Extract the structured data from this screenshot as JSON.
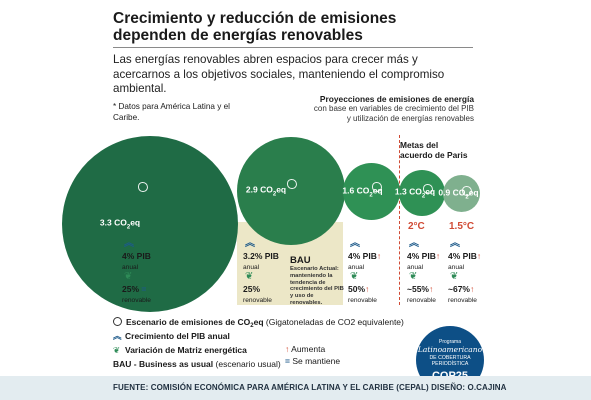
{
  "header": {
    "title": "Crecimiento y reducción de emisiones dependen de energías renovables",
    "intro": "Las energías renovables abren espacios para crecer más y acercarnos a los objetivos sociales, manteniendo el compromiso ambiental."
  },
  "note": "* Datos para América Latina y el Caribe.",
  "projections": {
    "title": "Proyecciones de emisiones de energía",
    "subtitle": "con base en variables de crecimiento del PIB y utilización de energías renovables"
  },
  "paris": {
    "title": "Metas del acuerdo de Paris"
  },
  "colors": {
    "dark_green": "#1f6b45",
    "mid_green": "#2f9155",
    "light_green": "#7fb08e",
    "red": "#d04a34",
    "blue": "#1d5a8a",
    "bau_fill": "#ece7c7"
  },
  "scenarios": [
    {
      "emission_value": "3.3",
      "emission_unit": "CO",
      "emission_sub": "2",
      "emission_tail": "eq",
      "gdp_value": "4%",
      "gdp_label": "PIB",
      "gdp_trend": "",
      "gdp_unit": "anual",
      "renewable_value": "25%",
      "renewable_trend": "=",
      "renewable_label": "renovable"
    },
    {
      "emission_value": "2.9",
      "emission_unit": "CO",
      "emission_sub": "2",
      "emission_tail": "eq",
      "gdp_value": "3.2%",
      "gdp_label": "PIB",
      "gdp_trend": "",
      "gdp_unit": "anual",
      "renewable_value": "25%",
      "renewable_trend": "",
      "renewable_label": "renovable",
      "bau_label": "BAU",
      "bau_desc": "Escenario Actual: manteniendo la tendencia de crecimiento del PIB y uso de renovables."
    },
    {
      "emission_value": "1.6",
      "emission_unit": "CO",
      "emission_sub": "2",
      "emission_tail": "eq",
      "gdp_value": "4%",
      "gdp_label": "PIB",
      "gdp_trend": "↑",
      "gdp_unit": "anual",
      "renewable_value": "50%",
      "renewable_trend": "↑",
      "renewable_label": "renovable"
    },
    {
      "emission_value": "1.3",
      "emission_unit": "CO",
      "emission_sub": "2",
      "emission_tail": "eq",
      "temp": "2°C",
      "gdp_value": "4%",
      "gdp_label": "PIB",
      "gdp_trend": "↑",
      "gdp_unit": "anual",
      "renewable_value": "~55%",
      "renewable_trend": "↑",
      "renewable_label": "renovable"
    },
    {
      "emission_value": "0.9",
      "emission_unit": "CO",
      "emission_sub": "2",
      "emission_tail": "eq",
      "temp": "1.5°C",
      "gdp_value": "4%",
      "gdp_label": "PIB",
      "gdp_trend": "↑",
      "gdp_unit": "anual",
      "renewable_value": "~67%",
      "renewable_trend": "↑",
      "renewable_label": "renovable"
    }
  ],
  "legend": {
    "emissions_bold": "Escenario de emisiones de CO",
    "emissions_sub": "2",
    "emissions_tail": "eq",
    "emissions_note": "(Gigatoneladas de CO2 equivalente)",
    "gdp": "Crecimiento del PIB  anual",
    "matrix": "Variación de Matriz energética",
    "bau_bold": "BAU - Business as usual",
    "bau_note": "(escenario usual)",
    "increase_symbol": "↑",
    "increase": "Aumenta",
    "same_symbol": "=",
    "same": "Se mantiene"
  },
  "badge": {
    "line1": "Programa",
    "line2": "Latinoamericano",
    "line3": "DE COBERTURA PERIODÍSTICA",
    "line4": "COP25"
  },
  "footer": {
    "prefix": "FUENTE:",
    "source": "COMISIÓN ECONÓMICA PARA AMÉRICA LATINA Y EL CARIBE (CEPAL)",
    "design_label": "DISEÑO:",
    "designer": "O.CAJINA"
  }
}
